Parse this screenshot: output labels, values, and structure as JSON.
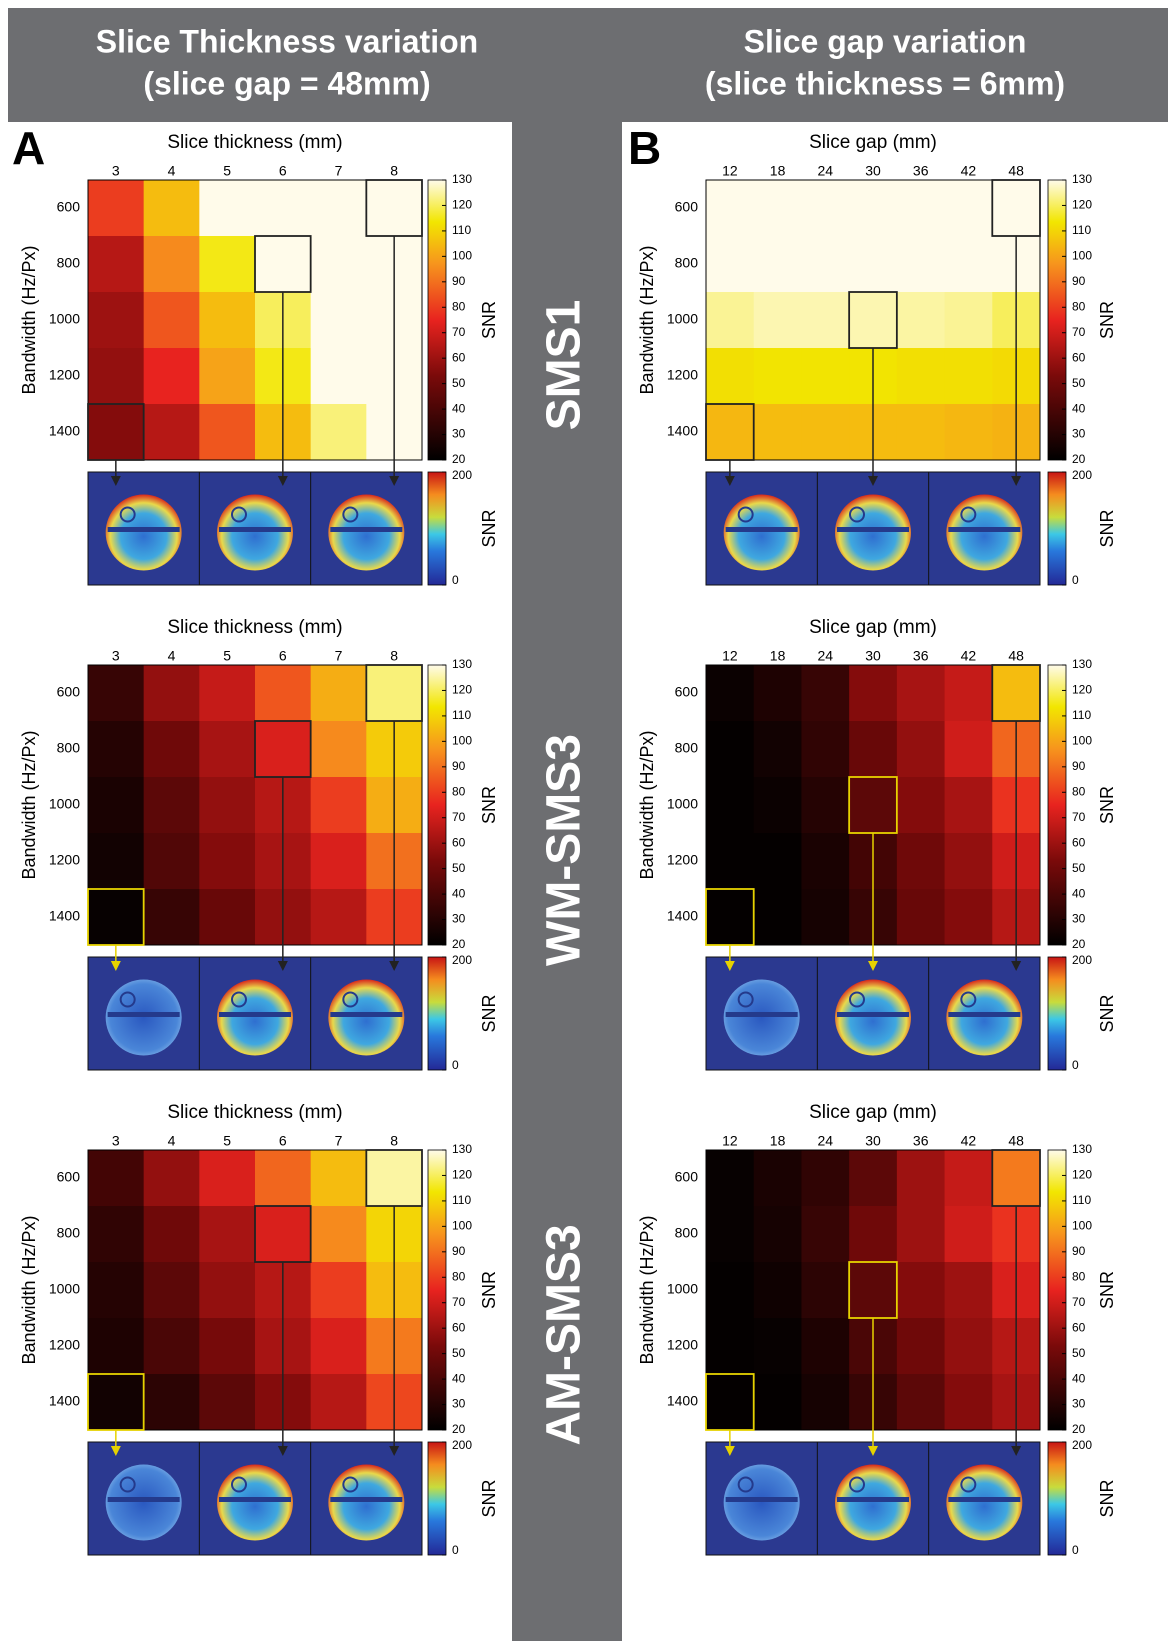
{
  "header": {
    "left": [
      "Slice Thickness variation",
      "(slice gap = 48mm)"
    ],
    "right": [
      "Slice gap variation",
      "(slice thickness = 6mm)"
    ]
  },
  "panel_labels": [
    "A",
    "B"
  ],
  "row_labels": [
    "SMS1",
    "WM-SMS3",
    "AM-SMS3"
  ],
  "chart_data": [
    {
      "type": "heatmap",
      "x_label": "Slice thickness (mm)",
      "y_label": "Bandwidth (Hz/Px)",
      "x_categories": [
        3,
        4,
        5,
        6,
        7,
        8
      ],
      "y_categories": [
        600,
        800,
        1000,
        1200,
        1400
      ],
      "z": [
        [
          80,
          105,
          130,
          130,
          130,
          130
        ],
        [
          65,
          95,
          115,
          130,
          130,
          130
        ],
        [
          60,
          85,
          105,
          120,
          130,
          130
        ],
        [
          58,
          75,
          100,
          115,
          130,
          130
        ],
        [
          55,
          65,
          85,
          105,
          122,
          130
        ]
      ],
      "clim": [
        20,
        130
      ],
      "cticks": [
        20,
        30,
        40,
        50,
        60,
        70,
        80,
        90,
        100,
        110,
        120,
        130
      ],
      "colorbar_label": "SNR",
      "inset": {
        "clim": [
          0,
          200
        ],
        "cticks": [
          0,
          200
        ],
        "colorbar_label": "SNR"
      }
    },
    {
      "type": "heatmap",
      "x_label": "Slice gap (mm)",
      "y_label": "Bandwidth (Hz/Px)",
      "x_categories": [
        12,
        18,
        24,
        30,
        36,
        42,
        48
      ],
      "y_categories": [
        600,
        800,
        1000,
        1200,
        1400
      ],
      "z": [
        [
          130,
          130,
          130,
          130,
          130,
          130,
          130
        ],
        [
          130,
          130,
          130,
          130,
          130,
          130,
          130
        ],
        [
          124,
          126,
          126,
          126,
          125,
          124,
          120
        ],
        [
          112,
          113,
          113,
          113,
          112,
          112,
          111
        ],
        [
          104,
          105,
          105,
          105,
          105,
          104,
          103
        ]
      ],
      "clim": [
        20,
        130
      ],
      "cticks": [
        20,
        30,
        40,
        50,
        60,
        70,
        80,
        90,
        100,
        110,
        120,
        130
      ],
      "colorbar_label": "SNR",
      "inset": {
        "clim": [
          0,
          200
        ],
        "cticks": [
          0,
          200
        ],
        "colorbar_label": "SNR"
      }
    },
    {
      "type": "heatmap",
      "x_label": "Slice thickness (mm)",
      "y_label": "Bandwidth (Hz/Px)",
      "x_categories": [
        3,
        4,
        5,
        6,
        7,
        8
      ],
      "y_categories": [
        600,
        800,
        1000,
        1200,
        1400
      ],
      "z": [
        [
          35,
          58,
          68,
          85,
          102,
          122
        ],
        [
          30,
          50,
          62,
          72,
          95,
          108
        ],
        [
          27,
          45,
          58,
          65,
          80,
          102
        ],
        [
          25,
          42,
          55,
          62,
          72,
          90
        ],
        [
          22,
          35,
          48,
          58,
          65,
          80
        ]
      ],
      "clim": [
        20,
        130
      ],
      "cticks": [
        20,
        30,
        40,
        50,
        60,
        70,
        80,
        90,
        100,
        110,
        120,
        130
      ],
      "colorbar_label": "SNR",
      "inset": {
        "clim": [
          0,
          200
        ],
        "cticks": [
          0,
          200
        ],
        "colorbar_label": "SNR"
      }
    },
    {
      "type": "heatmap",
      "x_label": "Slice gap (mm)",
      "y_label": "Bandwidth (Hz/Px)",
      "x_categories": [
        12,
        18,
        24,
        30,
        36,
        42,
        48
      ],
      "y_categories": [
        600,
        800,
        1000,
        1200,
        1400
      ],
      "z": [
        [
          23,
          28,
          35,
          55,
          62,
          68,
          105
        ],
        [
          21,
          25,
          33,
          48,
          58,
          70,
          88
        ],
        [
          21,
          23,
          30,
          45,
          55,
          62,
          78
        ],
        [
          21,
          21,
          27,
          38,
          50,
          58,
          70
        ],
        [
          21,
          21,
          26,
          35,
          48,
          55,
          65
        ]
      ],
      "clim": [
        20,
        130
      ],
      "cticks": [
        20,
        30,
        40,
        50,
        60,
        70,
        80,
        90,
        100,
        110,
        120,
        130
      ],
      "colorbar_label": "SNR",
      "inset": {
        "clim": [
          0,
          200
        ],
        "cticks": [
          0,
          200
        ],
        "colorbar_label": "SNR"
      }
    },
    {
      "type": "heatmap",
      "x_label": "Slice thickness (mm)",
      "y_label": "Bandwidth (Hz/Px)",
      "x_categories": [
        3,
        4,
        5,
        6,
        7,
        8
      ],
      "y_categories": [
        600,
        800,
        1000,
        1200,
        1400
      ],
      "z": [
        [
          38,
          58,
          72,
          88,
          105,
          125
        ],
        [
          33,
          50,
          62,
          72,
          95,
          110
        ],
        [
          30,
          45,
          58,
          65,
          80,
          105
        ],
        [
          28,
          40,
          52,
          62,
          72,
          92
        ],
        [
          25,
          32,
          45,
          55,
          65,
          82
        ]
      ],
      "clim": [
        20,
        130
      ],
      "cticks": [
        20,
        30,
        40,
        50,
        60,
        70,
        80,
        90,
        100,
        110,
        120,
        130
      ],
      "colorbar_label": "SNR",
      "inset": {
        "clim": [
          0,
          200
        ],
        "cticks": [
          0,
          200
        ],
        "colorbar_label": "SNR"
      }
    },
    {
      "type": "heatmap",
      "x_label": "Slice gap (mm)",
      "y_label": "Bandwidth (Hz/Px)",
      "x_categories": [
        12,
        18,
        24,
        30,
        36,
        42,
        48
      ],
      "y_categories": [
        600,
        800,
        1000,
        1200,
        1400
      ],
      "z": [
        [
          22,
          27,
          33,
          45,
          60,
          68,
          92
        ],
        [
          22,
          26,
          35,
          50,
          60,
          70,
          78
        ],
        [
          21,
          24,
          32,
          45,
          55,
          60,
          72
        ],
        [
          21,
          22,
          28,
          40,
          50,
          58,
          65
        ],
        [
          21,
          21,
          26,
          35,
          45,
          55,
          62
        ]
      ],
      "clim": [
        20,
        130
      ],
      "cticks": [
        20,
        30,
        40,
        50,
        60,
        70,
        80,
        90,
        100,
        110,
        120,
        130
      ],
      "colorbar_label": "SNR",
      "inset": {
        "clim": [
          0,
          200
        ],
        "cticks": [
          0,
          200
        ],
        "colorbar_label": "SNR"
      }
    }
  ]
}
